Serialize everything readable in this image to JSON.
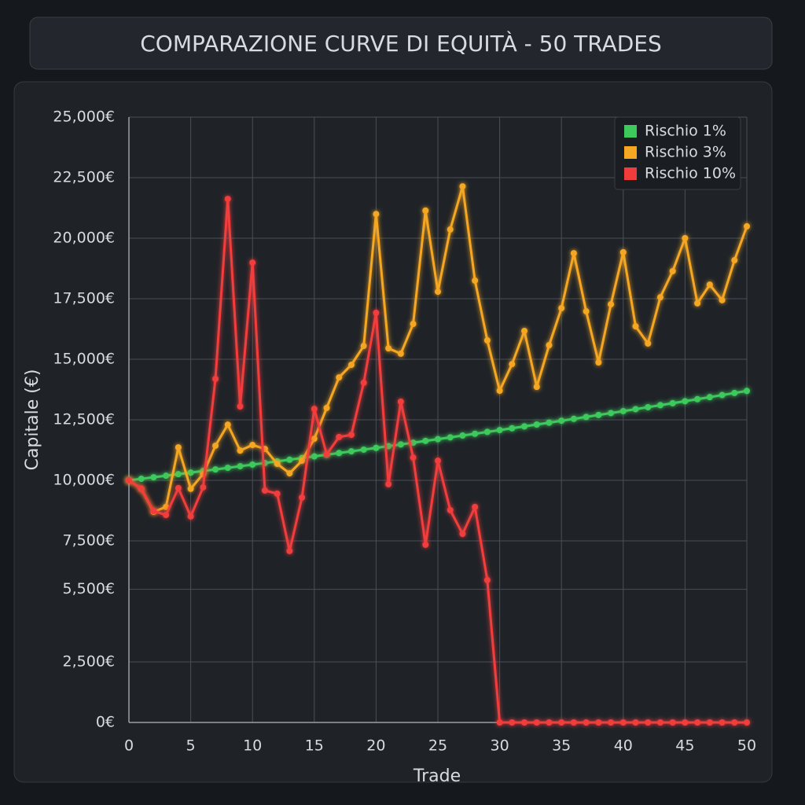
{
  "chart_data": {
    "type": "line",
    "title": "COMPARAZIONE CURVE DI EQUITÀ - 50 TRADES",
    "x_label": "Trade",
    "y_label": "Capitale (€)",
    "x": [
      0,
      1,
      2,
      3,
      4,
      5,
      6,
      7,
      8,
      9,
      10,
      11,
      12,
      13,
      14,
      15,
      16,
      17,
      18,
      19,
      20,
      21,
      22,
      23,
      24,
      25,
      26,
      27,
      28,
      29,
      30,
      31,
      32,
      33,
      34,
      35,
      36,
      37,
      38,
      39,
      40,
      41,
      42,
      43,
      44,
      45,
      46,
      47,
      48,
      49,
      50
    ],
    "series": [
      {
        "name": "Rischio 1%",
        "color": "#3ec95c",
        "values": [
          10000,
          10063,
          10127,
          10190,
          10255,
          10319,
          10384,
          10450,
          10516,
          10582,
          10649,
          10716,
          10783,
          10851,
          10920,
          10989,
          11058,
          11128,
          11198,
          11268,
          11339,
          11411,
          11483,
          11555,
          11628,
          11701,
          11775,
          11849,
          11924,
          11999,
          12075,
          12151,
          12228,
          12305,
          12382,
          12460,
          12539,
          12618,
          12698,
          12778,
          12858,
          12939,
          13021,
          13103,
          13185,
          13268,
          13352,
          13436,
          13521,
          13606,
          13692
        ]
      },
      {
        "name": "Rischio 3%",
        "color": "#f5a623",
        "values": [
          10000,
          9650,
          8700,
          8900,
          11360,
          9650,
          10260,
          11430,
          12300,
          11230,
          11460,
          11300,
          10680,
          10290,
          10810,
          11720,
          12990,
          14250,
          14770,
          15550,
          21000,
          15450,
          15230,
          16460,
          21140,
          17790,
          20360,
          22140,
          18250,
          15780,
          13700,
          14800,
          16170,
          13860,
          15580,
          17110,
          19380,
          16980,
          14870,
          17270,
          19420,
          16360,
          15650,
          17560,
          18640,
          20000,
          17310,
          18080,
          17440,
          19090,
          20490
        ]
      },
      {
        "name": "Rischio 10%",
        "color": "#f23c3c",
        "values": [
          10000,
          9650,
          8730,
          8570,
          9680,
          8510,
          9710,
          14190,
          21620,
          13050,
          18990,
          9580,
          9450,
          7080,
          9290,
          12950,
          11070,
          11790,
          11880,
          14030,
          16920,
          9840,
          13250,
          10940,
          7340,
          10810,
          8770,
          7790,
          8900,
          5880,
          0,
          0,
          0,
          0,
          0,
          0,
          0,
          0,
          0,
          0,
          0,
          0,
          0,
          0,
          0,
          0,
          0,
          0,
          0,
          0,
          0
        ]
      }
    ],
    "xlim": [
      0,
      50
    ],
    "xticks": [
      0,
      5,
      10,
      15,
      20,
      25,
      30,
      35,
      40,
      45,
      50
    ],
    "ylim": [
      0,
      25000
    ],
    "yticks": [
      {
        "value": 0,
        "label": "0€"
      },
      {
        "value": 2500,
        "label": "2,500€"
      },
      {
        "value": 5500,
        "label": "5,500€"
      },
      {
        "value": 7500,
        "label": "7,500€"
      },
      {
        "value": 10000,
        "label": "10,000€"
      },
      {
        "value": 12500,
        "label": "12,500€"
      },
      {
        "value": 15000,
        "label": "15,000€"
      },
      {
        "value": 17500,
        "label": "17,500€"
      },
      {
        "value": 20000,
        "label": "20,000€"
      },
      {
        "value": 22500,
        "label": "22,500€"
      },
      {
        "value": 25000,
        "label": "25,000€"
      }
    ],
    "grid": true,
    "legend": "top-right"
  }
}
